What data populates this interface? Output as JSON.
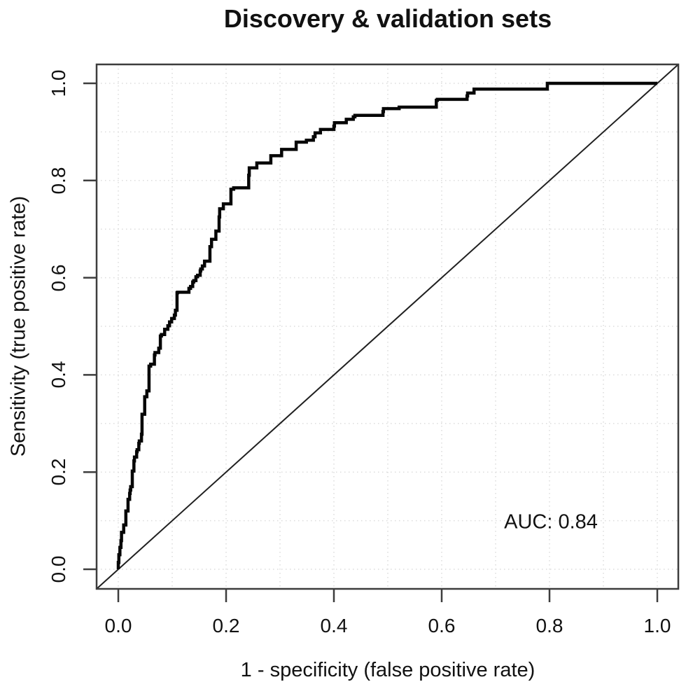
{
  "title": "Discovery & validation sets",
  "annotation": {
    "auc_label": "AUC: 0.84"
  },
  "x_axis": {
    "label": "1 - specificity (false positive rate)",
    "ticks": [
      "0.0",
      "0.2",
      "0.4",
      "0.6",
      "0.8",
      "1.0"
    ]
  },
  "y_axis": {
    "label": "Sensitivity (true positive rate)",
    "ticks": [
      "0.0",
      "0.2",
      "0.4",
      "0.6",
      "0.8",
      "1.0"
    ]
  },
  "colors": {
    "background": "#ffffff",
    "curve": "#060606",
    "diagonal": "#202020",
    "frame": "#3d3d3d",
    "grid": "#dcdcdc",
    "text": "#111111"
  },
  "chart_data": {
    "type": "line",
    "subtype": "roc_step",
    "title": "Discovery & validation sets",
    "xlabel": "1 - specificity (false positive rate)",
    "ylabel": "Sensitivity (true positive rate)",
    "xlim": [
      -0.04,
      1.04
    ],
    "ylim": [
      -0.04,
      1.04
    ],
    "x_ticks": [
      0.0,
      0.2,
      0.4,
      0.6,
      0.8,
      1.0
    ],
    "y_ticks": [
      0.0,
      0.2,
      0.4,
      0.6,
      0.8,
      1.0
    ],
    "grid": {
      "interval": 0.1,
      "style": "dotted",
      "on": true
    },
    "legend_position": "none",
    "auc": 0.84,
    "series": [
      {
        "name": "ROC curve (discovery & validation sets)",
        "style": "step",
        "points": [
          [
            0.0,
            0.0
          ],
          [
            0.001,
            0.014
          ],
          [
            0.003,
            0.03
          ],
          [
            0.005,
            0.045
          ],
          [
            0.006,
            0.059
          ],
          [
            0.01,
            0.076
          ],
          [
            0.014,
            0.091
          ],
          [
            0.014,
            0.11
          ],
          [
            0.018,
            0.12
          ],
          [
            0.021,
            0.144
          ],
          [
            0.022,
            0.156
          ],
          [
            0.023,
            0.163
          ],
          [
            0.026,
            0.17
          ],
          [
            0.029,
            0.202
          ],
          [
            0.03,
            0.223
          ],
          [
            0.034,
            0.231
          ],
          [
            0.035,
            0.242
          ],
          [
            0.038,
            0.246
          ],
          [
            0.039,
            0.259
          ],
          [
            0.043,
            0.264
          ],
          [
            0.044,
            0.278
          ],
          [
            0.044,
            0.288
          ],
          [
            0.049,
            0.319
          ],
          [
            0.053,
            0.355
          ],
          [
            0.057,
            0.367
          ],
          [
            0.06,
            0.418
          ],
          [
            0.067,
            0.422
          ],
          [
            0.068,
            0.441
          ],
          [
            0.075,
            0.446
          ],
          [
            0.078,
            0.455
          ],
          [
            0.08,
            0.48
          ],
          [
            0.086,
            0.483
          ],
          [
            0.092,
            0.494
          ],
          [
            0.095,
            0.501
          ],
          [
            0.099,
            0.509
          ],
          [
            0.104,
            0.516
          ],
          [
            0.106,
            0.523
          ],
          [
            0.109,
            0.533
          ],
          [
            0.11,
            0.569
          ],
          [
            0.131,
            0.57
          ],
          [
            0.134,
            0.578
          ],
          [
            0.138,
            0.582
          ],
          [
            0.14,
            0.591
          ],
          [
            0.144,
            0.594
          ],
          [
            0.147,
            0.602
          ],
          [
            0.152,
            0.605
          ],
          [
            0.153,
            0.614
          ],
          [
            0.156,
            0.618
          ],
          [
            0.16,
            0.624
          ],
          [
            0.17,
            0.634
          ],
          [
            0.173,
            0.664
          ],
          [
            0.181,
            0.679
          ],
          [
            0.187,
            0.696
          ],
          [
            0.188,
            0.725
          ],
          [
            0.195,
            0.742
          ],
          [
            0.209,
            0.752
          ],
          [
            0.214,
            0.782
          ],
          [
            0.242,
            0.785
          ],
          [
            0.243,
            0.811
          ],
          [
            0.257,
            0.826
          ],
          [
            0.283,
            0.836
          ],
          [
            0.303,
            0.851
          ],
          [
            0.33,
            0.864
          ],
          [
            0.349,
            0.879
          ],
          [
            0.362,
            0.883
          ],
          [
            0.365,
            0.89
          ],
          [
            0.375,
            0.898
          ],
          [
            0.4,
            0.905
          ],
          [
            0.401,
            0.912
          ],
          [
            0.423,
            0.919
          ],
          [
            0.436,
            0.926
          ],
          [
            0.439,
            0.931
          ],
          [
            0.491,
            0.934
          ],
          [
            0.492,
            0.942
          ],
          [
            0.521,
            0.948
          ],
          [
            0.59,
            0.951
          ],
          [
            0.592,
            0.965
          ],
          [
            0.647,
            0.967
          ],
          [
            0.648,
            0.974
          ],
          [
            0.66,
            0.98
          ],
          [
            0.796,
            0.988
          ],
          [
            0.868,
            1.0
          ],
          [
            1.0,
            1.0
          ]
        ]
      },
      {
        "name": "chance diagonal",
        "style": "thin_solid",
        "points": [
          [
            0,
            0
          ],
          [
            1,
            1
          ]
        ]
      }
    ]
  }
}
